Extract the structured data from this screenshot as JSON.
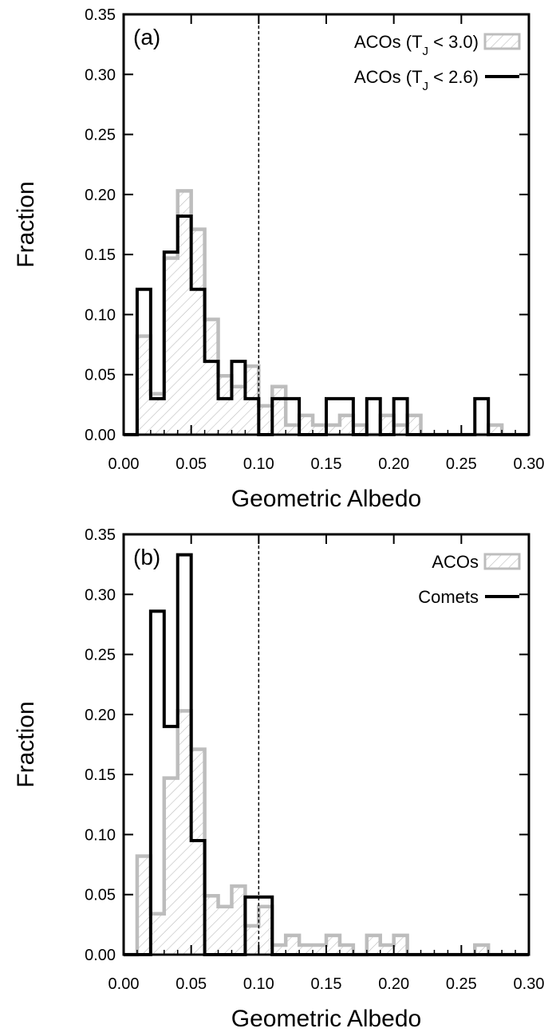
{
  "chart_data": [
    {
      "type": "bar",
      "panel_label": "(a)",
      "xlabel": "Geometric Albedo",
      "ylabel": "Fraction",
      "xlim": [
        0.0,
        0.3
      ],
      "ylim": [
        0.0,
        0.35
      ],
      "x_ticks": [
        "0.00",
        "0.05",
        "0.10",
        "0.15",
        "0.20",
        "0.25",
        "0.30"
      ],
      "y_ticks": [
        "0.00",
        "0.05",
        "0.10",
        "0.15",
        "0.20",
        "0.25",
        "0.30",
        "0.35"
      ],
      "bin_edges": [
        0.0,
        0.01,
        0.02,
        0.03,
        0.04,
        0.05,
        0.06,
        0.07,
        0.08,
        0.09,
        0.1,
        0.11,
        0.12,
        0.13,
        0.14,
        0.15,
        0.16,
        0.17,
        0.18,
        0.19,
        0.2,
        0.21,
        0.22,
        0.23,
        0.24,
        0.25,
        0.26,
        0.27,
        0.28,
        0.29,
        0.3
      ],
      "reference_line_x": 0.1,
      "legend_position": "top-right",
      "series": [
        {
          "name_main": "ACOs (T",
          "name_sub": "J",
          "name_tail": " < 3.0)",
          "style": "hatched-gray",
          "color": "#bdbdbd",
          "values": [
            0,
            0.082,
            0.034,
            0.147,
            0.203,
            0.171,
            0.096,
            0.049,
            0.04,
            0.057,
            0.024,
            0.04,
            0.008,
            0.016,
            0.008,
            0.008,
            0.016,
            0.008,
            0.0,
            0.016,
            0.008,
            0.016,
            0,
            0,
            0,
            0,
            0,
            0.008,
            0,
            0
          ]
        },
        {
          "name_main": "ACOs (T",
          "name_sub": "J",
          "name_tail": " < 2.6)",
          "style": "outline-black",
          "color": "#000000",
          "values": [
            0,
            0.121,
            0.03,
            0.152,
            0.182,
            0.121,
            0.061,
            0.03,
            0.061,
            0.03,
            0,
            0.03,
            0.03,
            0,
            0,
            0.03,
            0.03,
            0,
            0.03,
            0,
            0.03,
            0,
            0,
            0,
            0,
            0,
            0.03,
            0,
            0,
            0
          ]
        }
      ]
    },
    {
      "type": "bar",
      "panel_label": "(b)",
      "xlabel": "Geometric Albedo",
      "ylabel": "Fraction",
      "xlim": [
        0.0,
        0.3
      ],
      "ylim": [
        0.0,
        0.35
      ],
      "x_ticks": [
        "0.00",
        "0.05",
        "0.10",
        "0.15",
        "0.20",
        "0.25",
        "0.30"
      ],
      "y_ticks": [
        "0.00",
        "0.05",
        "0.10",
        "0.15",
        "0.20",
        "0.25",
        "0.30",
        "0.35"
      ],
      "bin_edges": [
        0.0,
        0.01,
        0.02,
        0.03,
        0.04,
        0.05,
        0.06,
        0.07,
        0.08,
        0.09,
        0.1,
        0.11,
        0.12,
        0.13,
        0.14,
        0.15,
        0.16,
        0.17,
        0.18,
        0.19,
        0.2,
        0.21,
        0.22,
        0.23,
        0.24,
        0.25,
        0.26,
        0.27,
        0.28,
        0.29,
        0.3
      ],
      "reference_line_x": 0.1,
      "legend_position": "top-right",
      "series": [
        {
          "name_main": "ACOs",
          "name_sub": "",
          "name_tail": "",
          "style": "hatched-gray",
          "color": "#bdbdbd",
          "values": [
            0,
            0.082,
            0.034,
            0.147,
            0.203,
            0.171,
            0.049,
            0.04,
            0.057,
            0.024,
            0.04,
            0.008,
            0.016,
            0.008,
            0.008,
            0.016,
            0.008,
            0.0,
            0.016,
            0.008,
            0.016,
            0,
            0,
            0,
            0,
            0,
            0.008,
            0,
            0,
            0
          ]
        },
        {
          "name_main": "Comets",
          "name_sub": "",
          "name_tail": "",
          "style": "outline-black",
          "color": "#000000",
          "values": [
            0,
            0,
            0.286,
            0.19,
            0.333,
            0.095,
            0,
            0,
            0,
            0.048,
            0.048,
            0,
            0,
            0,
            0,
            0,
            0,
            0,
            0,
            0,
            0,
            0,
            0,
            0,
            0,
            0,
            0,
            0,
            0,
            0
          ]
        }
      ]
    }
  ]
}
